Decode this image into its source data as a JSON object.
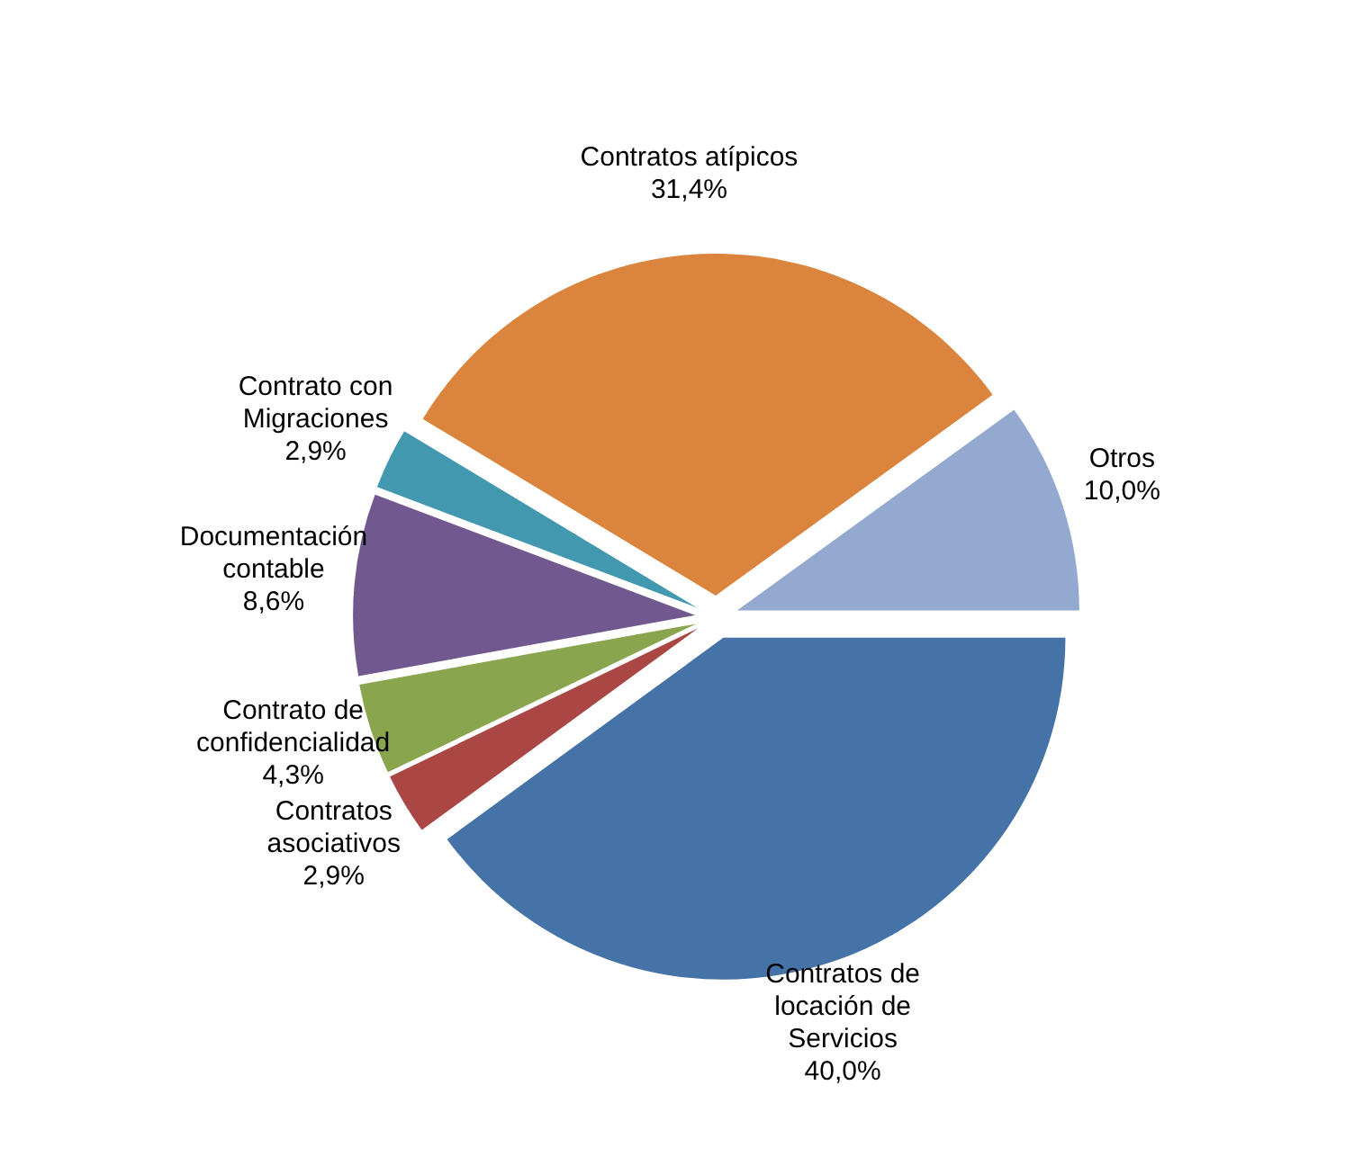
{
  "chart_data": {
    "type": "pie",
    "categories": [
      "Contratos de locación de Servicios",
      "Contratos asociativos",
      "Contrato de confidencialidad",
      "Documentación contable",
      "Contrato con Migraciones",
      "Contratos atípicos",
      "Otros"
    ],
    "values": [
      40.0,
      2.9,
      4.3,
      8.6,
      2.9,
      31.4,
      10.0
    ],
    "value_labels": [
      "40,0%",
      "2,9%",
      "4,3%",
      "8,6%",
      "2,9%",
      "31,4%",
      "10,0%"
    ],
    "colors": [
      "#4572a7",
      "#aa4643",
      "#89a54e",
      "#71588f",
      "#4198af",
      "#db843d",
      "#93a9cf"
    ],
    "legend": false
  }
}
